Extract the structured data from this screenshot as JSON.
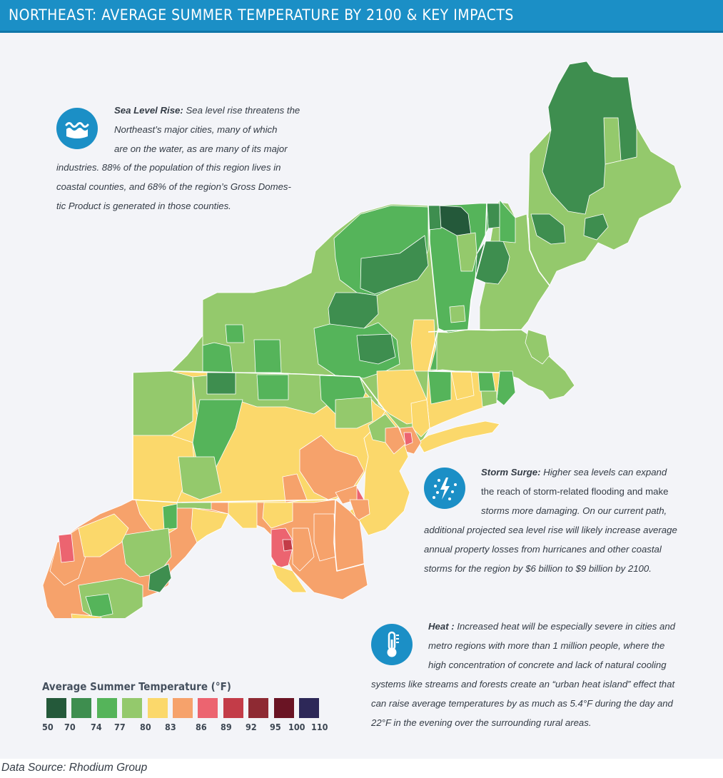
{
  "header": {
    "title": "NORTHEAST: AVERAGE SUMMER TEMPERATURE BY 2100 & KEY IMPACTS"
  },
  "sea_level": {
    "icon": "wave-water-icon",
    "heading": "Sea Level Rise:",
    "lines": [
      "Sea level rise threatens the",
      "Northeast’s major cities, many of which",
      "are on the water, as are many of its major",
      "industries. 88% of the population of this region lives in",
      "coastal counties, and 68% of the region’s Gross Domes-",
      "tic Product is generated in those counties."
    ]
  },
  "storm_surge": {
    "icon": "storm-rain-lightning-icon",
    "heading": "Storm Surge:",
    "lines": [
      "Higher sea levels can expand",
      "the reach of storm-related flooding and make",
      "storms more damaging. On our current path,",
      "additional projected sea level rise will likely increase average",
      "annual property losses from hurricanes and other coastal",
      "storms for the region by $6 billion to $9 billion by 2100."
    ]
  },
  "heat": {
    "icon": "thermometer-icon",
    "heading": "Heat :",
    "lines": [
      "Increased heat will be especially severe in cities and",
      "metro regions with more than 1 million people, where the",
      "high concentration of concrete and lack of natural cooling",
      "systems like streams and forests create an “urban heat island” effect that",
      "can raise average temperatures by as much as 5.4°F during the day and",
      "22°F in the evening over the surrounding rural areas."
    ]
  },
  "legend": {
    "title": "Average Summer Temperature (°F)",
    "bins": [
      {
        "label": "50",
        "color": "#24593a"
      },
      {
        "label": "70",
        "color": "#3e8e4f"
      },
      {
        "label": "74",
        "color": "#55b45a"
      },
      {
        "label": "77",
        "color": "#94c96c"
      },
      {
        "label": "80",
        "color": "#fbd86b"
      },
      {
        "label": "83",
        "color": "#f6a26b"
      },
      {
        "label": "86",
        "color": "#ec6470"
      },
      {
        "label": "89",
        "color": "#c33c48"
      },
      {
        "label": "92",
        "color": "#8e2a33"
      },
      {
        "label": "95",
        "color": "#6a1424"
      },
      {
        "label": "100",
        "color": "#2d2858"
      },
      {
        "label": "110",
        "color": ""
      }
    ]
  },
  "footer": {
    "source": "Data Source: Rhodium Group"
  }
}
